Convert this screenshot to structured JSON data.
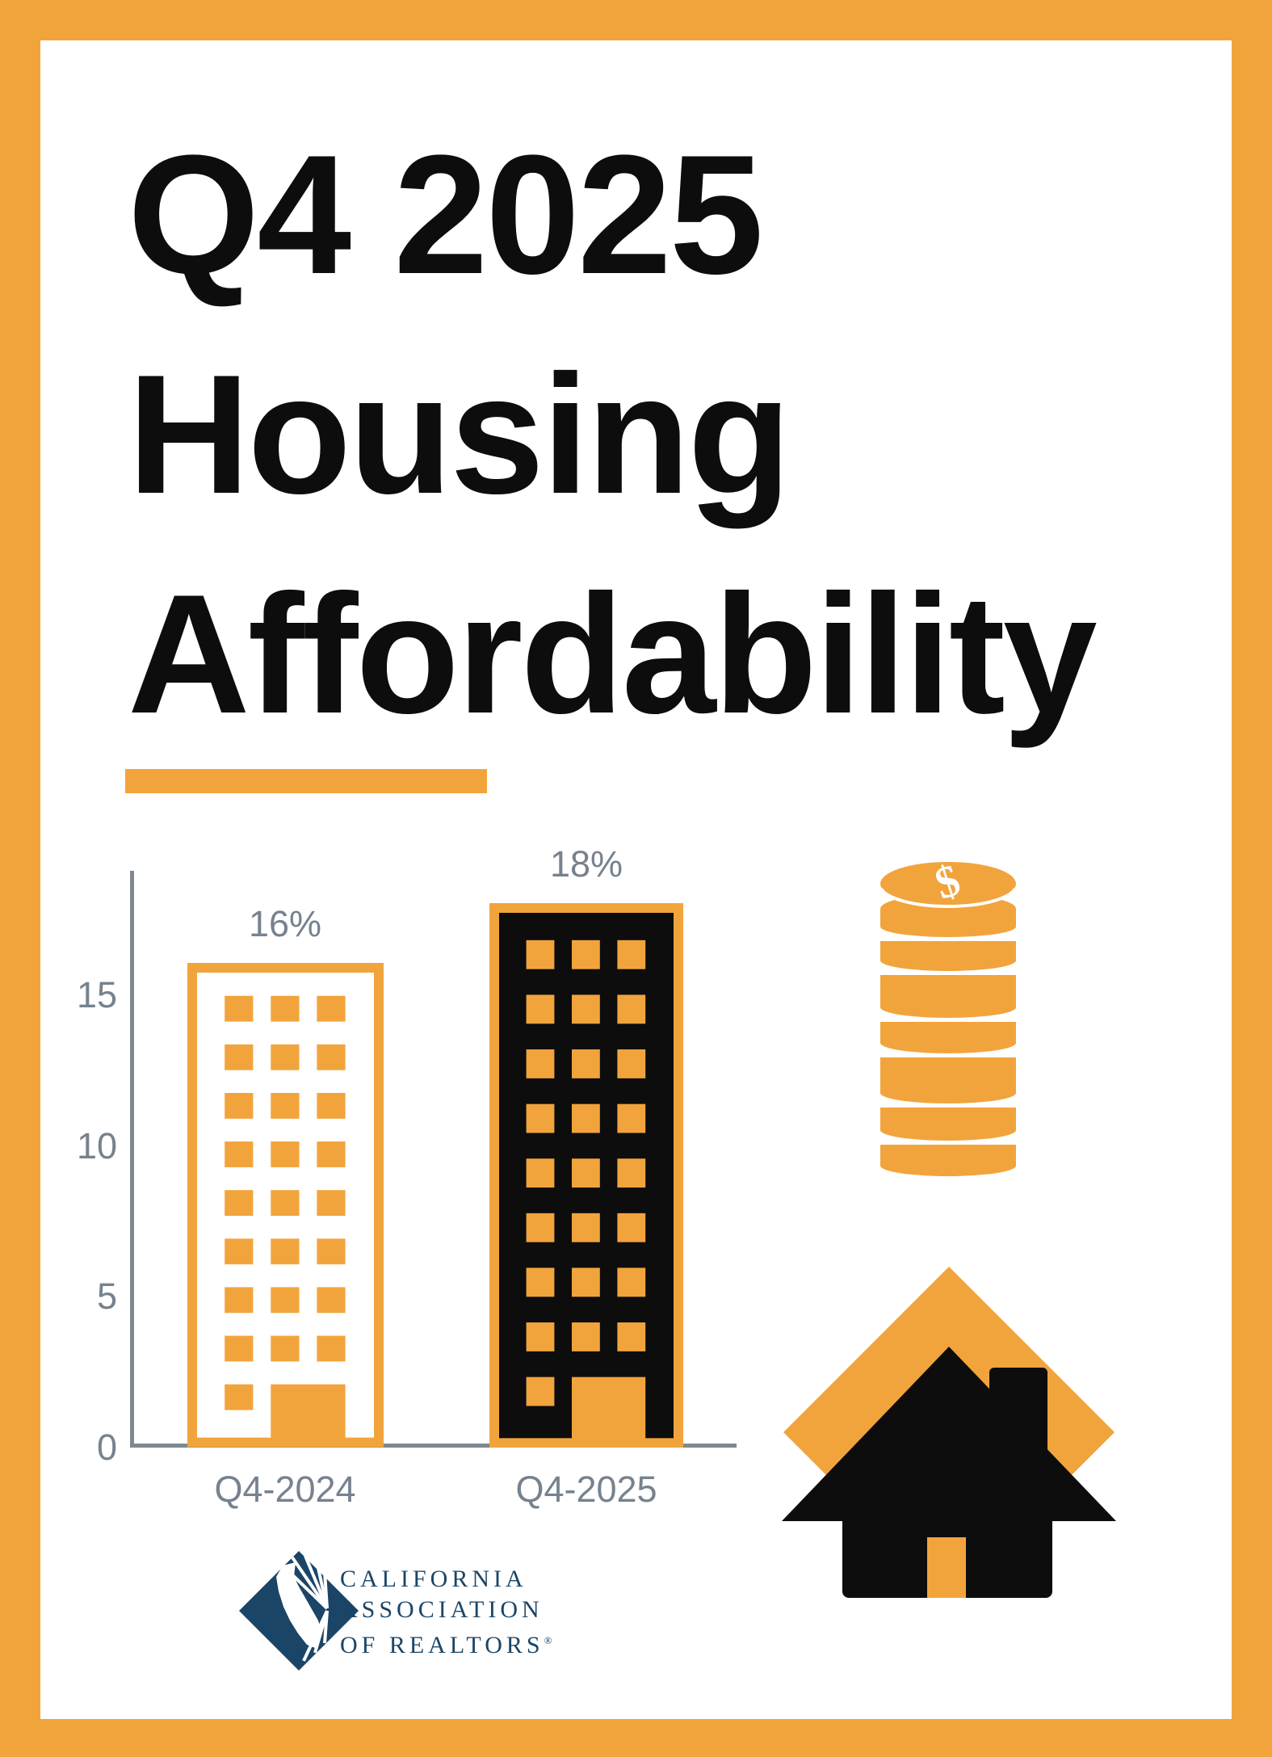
{
  "poster": {
    "title_lines": [
      "Q4 2025",
      "Housing",
      "Affordability"
    ],
    "accent_color": "#F2A43C",
    "background": "#FFFFFF",
    "title_color": "#0D0D0D"
  },
  "chart_data": {
    "type": "bar",
    "title": "",
    "xlabel": "",
    "ylabel": "",
    "categories": [
      "Q4-2024",
      "Q4-2025"
    ],
    "values": [
      16,
      18
    ],
    "value_labels": [
      "16%",
      "18%"
    ],
    "unit": "percent",
    "yticks": [
      0,
      5,
      10,
      15
    ],
    "ytick_labels": [
      "0",
      "5",
      "10",
      "15"
    ],
    "ylim": [
      0,
      19
    ],
    "grid": false,
    "legend": "none",
    "axis_color": "#7E8890",
    "label_color": "#76828E",
    "bar_styles": [
      {
        "category": "Q4-2024",
        "motif": "building-outline",
        "fill": "#FFFFFF",
        "outline": "#F2A43C",
        "windows": "#F2A43C"
      },
      {
        "category": "Q4-2025",
        "motif": "building-solid",
        "fill": "#0D0D0D",
        "outline": "#F2A43C",
        "windows": "#F2A43C"
      }
    ]
  },
  "icons": {
    "coins": {
      "symbol": "$",
      "color": "#F2A43C",
      "symbol_color": "#FFFFFF"
    },
    "house": {
      "house_color": "#0D0D0D",
      "diamond_color": "#F2A43C",
      "door_color": "#F2A43C"
    }
  },
  "logo": {
    "lines": [
      "CALIFORNIA",
      "ASSOCIATION",
      "OF REALTORS"
    ],
    "registered_mark": "®",
    "color": "#1B4567"
  }
}
